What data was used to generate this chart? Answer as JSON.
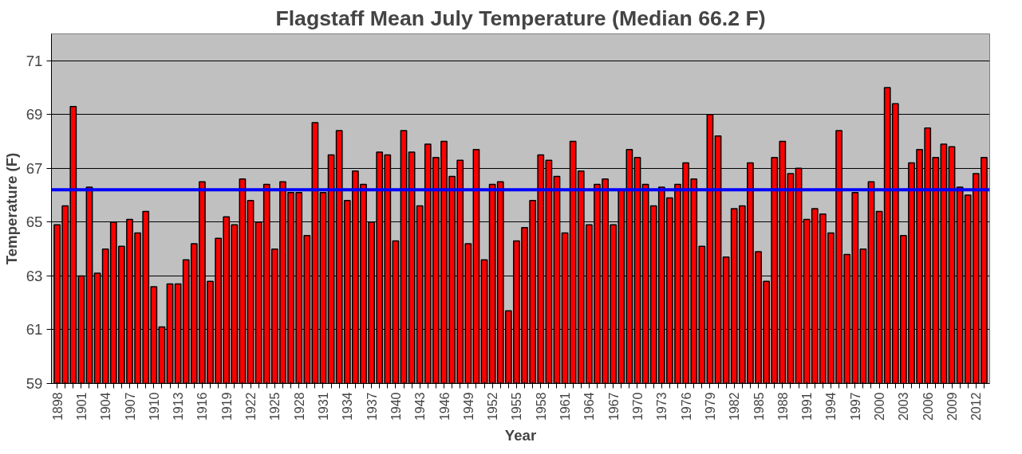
{
  "chart_data": {
    "type": "bar",
    "title": "Flagstaff Mean July Temperature (Median 66.2 F)",
    "xlabel": "Year",
    "ylabel": "Temperature (F)",
    "categories": [
      "1898",
      null,
      null,
      "1901",
      null,
      null,
      "1904",
      null,
      null,
      "1907",
      null,
      null,
      "1910",
      null,
      null,
      "1913",
      null,
      null,
      "1916",
      null,
      null,
      "1919",
      null,
      null,
      "1922",
      null,
      null,
      "1925",
      null,
      null,
      "1928",
      null,
      null,
      "1931",
      null,
      null,
      "1934",
      null,
      null,
      "1937",
      null,
      null,
      "1940",
      null,
      null,
      "1943",
      null,
      null,
      "1946",
      null,
      null,
      "1949",
      null,
      null,
      "1952",
      null,
      null,
      "1955",
      null,
      null,
      "1958",
      null,
      null,
      "1961",
      null,
      null,
      "1964",
      null,
      null,
      "1967",
      null,
      null,
      "1970",
      null,
      null,
      "1973",
      null,
      null,
      "1976",
      null,
      null,
      "1979",
      null,
      null,
      "1982",
      null,
      null,
      "1985",
      null,
      null,
      "1988",
      null,
      null,
      "1991",
      null,
      null,
      "1994",
      null,
      null,
      "1997",
      null,
      null,
      "2000",
      null,
      null,
      "2003",
      null,
      null,
      "2006",
      null,
      null,
      "2009",
      null,
      null,
      "2012",
      null
    ],
    "series": [
      {
        "color": "#ff0000",
        "values": [
          64.9,
          65.6,
          69.3,
          63.0,
          66.3,
          63.1,
          64.0,
          65.0,
          64.1,
          65.1,
          64.6,
          65.4,
          62.6,
          61.1,
          62.7,
          62.7,
          63.6,
          64.2,
          66.5,
          62.8,
          64.4,
          65.2,
          64.9,
          66.6,
          65.8,
          65.0,
          66.4,
          64.0,
          66.5,
          66.1,
          66.1,
          64.5,
          68.7,
          66.1,
          67.5,
          68.4,
          65.8,
          66.9,
          66.4,
          65.0,
          67.6,
          67.5,
          64.3,
          68.4,
          67.6,
          65.6,
          67.9,
          67.4,
          68.0,
          66.7,
          67.3,
          64.2,
          67.7,
          63.6,
          66.4,
          66.5,
          61.7,
          64.3,
          64.8,
          65.8,
          67.5,
          67.3,
          66.7,
          64.6,
          68.0,
          66.9,
          64.9,
          66.4,
          66.6,
          64.9,
          66.2,
          67.7,
          67.4,
          66.4,
          65.6,
          66.3,
          65.9,
          66.4,
          67.2,
          66.6,
          64.1,
          69.0,
          68.2,
          63.7,
          65.5,
          65.6,
          67.2,
          63.9,
          62.8,
          67.4,
          68.0,
          66.8,
          67.0,
          65.1,
          65.5,
          65.3,
          64.6,
          68.4,
          63.8,
          66.1,
          64.0,
          66.5,
          65.4,
          70.0,
          69.4,
          64.5,
          67.2,
          67.7,
          68.5,
          67.4,
          67.9,
          67.8,
          66.3,
          66.0,
          66.8,
          67.4
        ]
      }
    ],
    "ylim": [
      59,
      72
    ],
    "yticks": [
      59,
      61,
      63,
      65,
      67,
      69,
      71
    ],
    "grid": "y",
    "ref_lines": [
      {
        "axis": "y",
        "value": 66.2,
        "color": "#0000ff"
      }
    ]
  }
}
